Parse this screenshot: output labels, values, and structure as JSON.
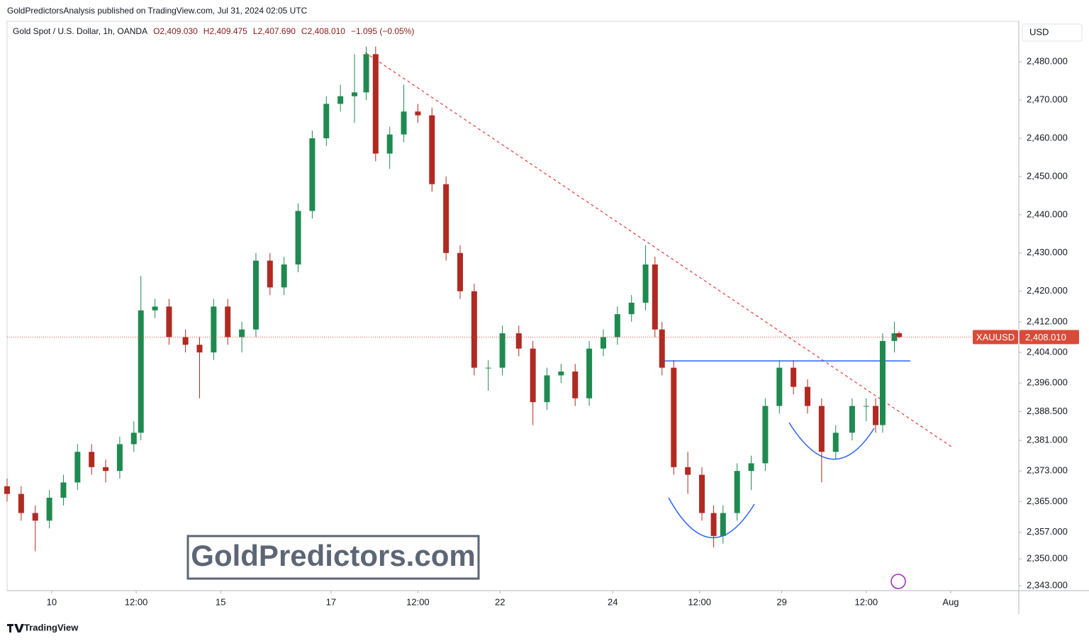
{
  "header": {
    "published": "GoldPredictorsAnalysis published on TradingView.com, Jul 31, 2024 02:05 UTC",
    "symbol": "Gold Spot / U.S. Dollar, 1h, OANDA",
    "ohlc": [
      "O2,409.030",
      "H2,409.475",
      "L2,407.690",
      "C2,408.010"
    ],
    "change": "−1.095 (−0.05%)"
  },
  "currency": "USD",
  "ticker": "XAUUSD",
  "watermark": "GoldPredictors.com",
  "footer": "TradingView",
  "chart_data": {
    "type": "candlestick",
    "up_color": "#1f8a50",
    "down_color": "#b02a22",
    "xlim": [
      0,
      431
    ],
    "ylim": [
      2341.7,
      2490.6
    ],
    "xticks": [
      {
        "value": 19,
        "label": "10"
      },
      {
        "value": 55,
        "label": "12:00"
      },
      {
        "value": 91,
        "label": "15"
      },
      {
        "value": 138,
        "label": "17"
      },
      {
        "value": 175,
        "label": "12:00"
      },
      {
        "value": 210,
        "label": "22"
      },
      {
        "value": 258,
        "label": "24"
      },
      {
        "value": 295,
        "label": "12:00"
      },
      {
        "value": 330,
        "label": "29"
      },
      {
        "value": 366,
        "label": "12:00"
      },
      {
        "value": 402,
        "label": "Aug"
      }
    ],
    "yticks": [
      {
        "value": 2480,
        "label": "2,480.000"
      },
      {
        "value": 2470,
        "label": "2,470.000"
      },
      {
        "value": 2460,
        "label": "2,460.000"
      },
      {
        "value": 2450,
        "label": "2,450.000"
      },
      {
        "value": 2440,
        "label": "2,440.000"
      },
      {
        "value": 2430,
        "label": "2,430.000"
      },
      {
        "value": 2420,
        "label": "2,420.000"
      },
      {
        "value": 2412,
        "label": "2,412.000"
      },
      {
        "value": 2404,
        "label": "2,404.000"
      },
      {
        "value": 2396,
        "label": "2,396.000"
      },
      {
        "value": 2388.5,
        "label": "2,388.500"
      },
      {
        "value": 2381,
        "label": "2,381.000"
      },
      {
        "value": 2373,
        "label": "2,373.000"
      },
      {
        "value": 2365,
        "label": "2,365.000"
      },
      {
        "value": 2357,
        "label": "2,357.000"
      },
      {
        "value": 2350,
        "label": "2,350.000"
      },
      {
        "value": 2343,
        "label": "2,343.000"
      }
    ],
    "last_price": {
      "value": 2408.01,
      "label": "2,408.010"
    },
    "x": [
      0,
      6,
      12,
      18,
      24,
      30,
      36,
      42,
      48,
      54,
      57,
      63,
      69,
      76,
      82,
      88,
      94,
      100,
      106,
      112,
      118,
      124,
      130,
      136,
      142,
      148,
      153,
      157,
      163,
      169,
      175,
      181,
      187,
      193,
      199,
      205,
      211,
      218,
      224,
      230,
      236,
      242,
      248,
      254,
      260,
      266,
      272,
      276,
      279,
      284,
      290,
      296,
      301,
      305,
      311,
      317,
      323,
      329,
      335,
      341,
      347,
      353,
      360,
      366,
      370,
      373,
      378,
      380
    ],
    "open": [
      2369,
      2367,
      2362,
      2360,
      2366,
      2370,
      2378,
      2374,
      2373,
      2380,
      2383,
      2415,
      2416,
      2408,
      2406,
      2404,
      2416,
      2408,
      2410,
      2428,
      2421,
      2427,
      2441,
      2460,
      2469,
      2471,
      2472,
      2482,
      2456,
      2461,
      2467,
      2466,
      2448,
      2430,
      2420,
      2400,
      2400,
      2409,
      2405,
      2391,
      2398,
      2399,
      2392,
      2405,
      2408,
      2414,
      2417,
      2427,
      2410,
      2400,
      2374,
      2372,
      2362,
      2356,
      2362,
      2373,
      2375,
      2390,
      2400,
      2395,
      2390,
      2378,
      2383,
      2390,
      2390,
      2385,
      2407,
      2409.03
    ],
    "high": [
      2371,
      2369,
      2364,
      2368,
      2372,
      2380,
      2380,
      2376,
      2382,
      2386,
      2424,
      2418,
      2418,
      2410,
      2408,
      2418,
      2418,
      2412,
      2430,
      2430,
      2429,
      2443,
      2462,
      2471,
      2474,
      2482,
      2484,
      2484,
      2463,
      2474,
      2469,
      2468,
      2450,
      2432,
      2422,
      2402,
      2411,
      2411,
      2407,
      2400,
      2401,
      2401,
      2407,
      2410,
      2416,
      2419,
      2432,
      2429,
      2412,
      2402,
      2378,
      2374,
      2364,
      2364,
      2375,
      2377,
      2392,
      2402,
      2402,
      2397,
      2392,
      2385,
      2392,
      2392,
      2392,
      2409,
      2412,
      2409.475
    ],
    "low": [
      2365,
      2360,
      2352,
      2358,
      2364,
      2368,
      2372,
      2370,
      2371,
      2378,
      2381,
      2413,
      2406,
      2404,
      2392,
      2402,
      2406,
      2404,
      2408,
      2419,
      2419,
      2425,
      2439,
      2458,
      2467,
      2464,
      2470,
      2454,
      2452,
      2459,
      2464,
      2446,
      2428,
      2418,
      2398,
      2394,
      2398,
      2403,
      2385,
      2389,
      2396,
      2390,
      2390,
      2403,
      2406,
      2412,
      2415,
      2408,
      2398,
      2372,
      2367,
      2360,
      2353,
      2354,
      2360,
      2368,
      2373,
      2388,
      2393,
      2388,
      2370,
      2376,
      2381,
      2386,
      2383,
      2383,
      2404,
      2407.69
    ],
    "close": [
      2367,
      2362,
      2360,
      2366,
      2370,
      2378,
      2374,
      2373,
      2380,
      2383,
      2415,
      2416,
      2408,
      2406,
      2404,
      2416,
      2408,
      2410,
      2428,
      2421,
      2427,
      2441,
      2460,
      2469,
      2471,
      2472,
      2482,
      2456,
      2461,
      2467,
      2466,
      2448,
      2430,
      2420,
      2400,
      2400,
      2409,
      2405,
      2391,
      2398,
      2399,
      2392,
      2405,
      2408,
      2414,
      2417,
      2427,
      2410,
      2400,
      2374,
      2372,
      2362,
      2356,
      2362,
      2373,
      2375,
      2390,
      2400,
      2395,
      2390,
      2378,
      2383,
      2390,
      2390,
      2385,
      2407,
      2409,
      2408.01
    ]
  }
}
